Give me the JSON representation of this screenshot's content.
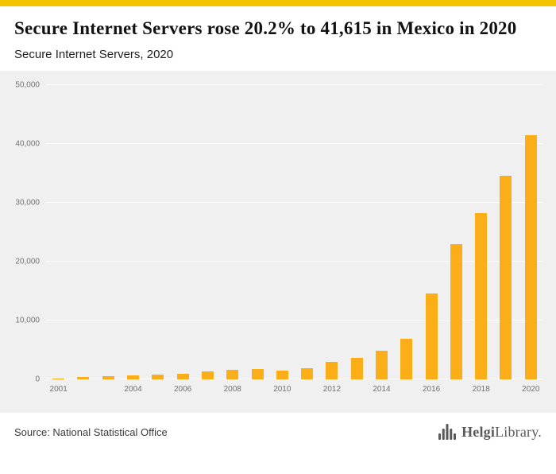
{
  "colors": {
    "accent": "#F4C400",
    "bar": "#FBAE17",
    "chart_bg": "#F0F0F0"
  },
  "header": {
    "title": "Secure Internet Servers rose 20.2% to 41,615 in Mexico in 2020",
    "subtitle": "Secure Internet Servers, 2020"
  },
  "chart_data": {
    "type": "bar",
    "title": "Secure Internet Servers, 2020",
    "categories": [
      "2001",
      "2002",
      "2003",
      "2004",
      "2005",
      "2006",
      "2007",
      "2008",
      "2009",
      "2010",
      "2011",
      "2012",
      "2013",
      "2014",
      "2015",
      "2016",
      "2017",
      "2018",
      "2019",
      "2020"
    ],
    "values": [
      250,
      400,
      550,
      700,
      850,
      1050,
      1400,
      1700,
      1800,
      1600,
      2000,
      3100,
      3700,
      4900,
      7000,
      14700,
      23100,
      28300,
      34622,
      41615
    ],
    "ylim": [
      0,
      50000
    ],
    "yticks": [
      {
        "value": 0,
        "label": "0"
      },
      {
        "value": 10000,
        "label": "10,000"
      },
      {
        "value": 20000,
        "label": "20,000"
      },
      {
        "value": 30000,
        "label": "30,000"
      },
      {
        "value": 40000,
        "label": "40,000"
      },
      {
        "value": 50000,
        "label": "50,000"
      }
    ],
    "visible_x_labels": [
      "2001",
      "2004",
      "2006",
      "2008",
      "2010",
      "2012",
      "2014",
      "2016",
      "2018",
      "2020"
    ],
    "grid": true,
    "legend": false,
    "xlabel": "",
    "ylabel": ""
  },
  "footer": {
    "source": "Source: National Statistical Office",
    "logo": {
      "part1": "Helgi",
      "part2": "Library",
      "suffix": "."
    }
  }
}
